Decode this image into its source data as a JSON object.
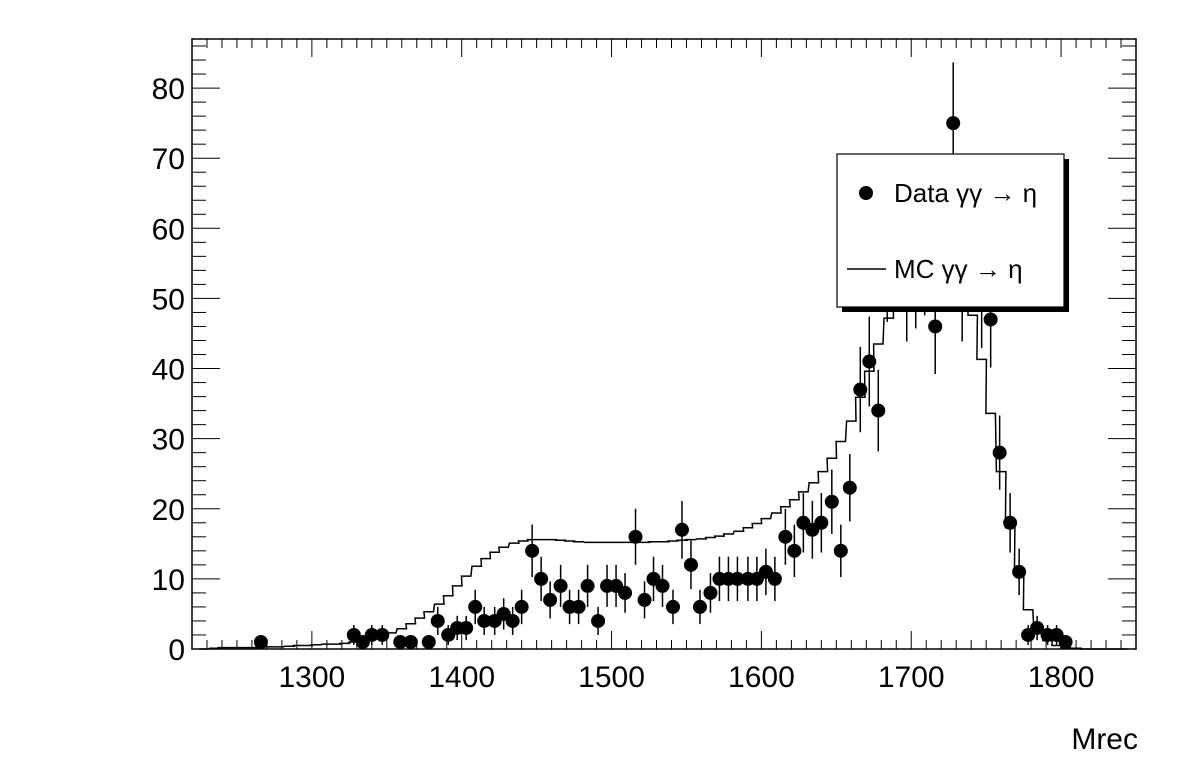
{
  "chart_data": {
    "type": "scatter",
    "title": "",
    "xlabel": "Mrec",
    "ylabel": "",
    "xlim": [
      1220,
      1850
    ],
    "ylim": [
      0,
      87
    ],
    "x_ticks": [
      1300,
      1400,
      1500,
      1600,
      1700,
      1800
    ],
    "x_tick_labels": [
      "1300",
      "1400",
      "1500",
      "1600",
      "1700",
      "1800"
    ],
    "y_ticks": [
      0,
      10,
      20,
      30,
      40,
      50,
      60,
      70,
      80
    ],
    "y_tick_labels": [
      "0",
      "10",
      "20",
      "30",
      "40",
      "50",
      "60",
      "70",
      "80"
    ],
    "grid": false,
    "legend_position": "top-right",
    "legend": [
      {
        "label": "Data γγ → η",
        "style": "marker"
      },
      {
        "label": "MC γγ → η",
        "style": "line"
      }
    ],
    "series": [
      {
        "name": "Data γγ → η",
        "kind": "points-with-errors",
        "x": [
          1266,
          1328,
          1334,
          1340,
          1347,
          1359,
          1366,
          1378,
          1384,
          1391,
          1397,
          1403,
          1409,
          1415,
          1422,
          1428,
          1434,
          1440,
          1447,
          1453,
          1459,
          1466,
          1472,
          1478,
          1484,
          1491,
          1497,
          1503,
          1509,
          1516,
          1522,
          1528,
          1534,
          1541,
          1547,
          1553,
          1559,
          1566,
          1572,
          1578,
          1584,
          1591,
          1597,
          1603,
          1609,
          1616,
          1622,
          1628,
          1634,
          1640,
          1647,
          1653,
          1659,
          1666,
          1672,
          1678,
          1684,
          1691,
          1697,
          1703,
          1709,
          1716,
          1722,
          1728,
          1734,
          1741,
          1747,
          1753,
          1759,
          1766,
          1772,
          1778,
          1784,
          1791,
          1797,
          1803
        ],
        "y": [
          1,
          2,
          1,
          2,
          2,
          1,
          1,
          1,
          4,
          2,
          3,
          3,
          6,
          4,
          4,
          5,
          4,
          6,
          14,
          10,
          7,
          9,
          6,
          6,
          9,
          4,
          9,
          9,
          8,
          16,
          7,
          10,
          9,
          6,
          17,
          12,
          6,
          8,
          10,
          10,
          10,
          10,
          10,
          11,
          10,
          16,
          14,
          18,
          17,
          18,
          21,
          14,
          23,
          37,
          41,
          34,
          54,
          56,
          51,
          53,
          55,
          46,
          60,
          75,
          51,
          61,
          50,
          47,
          28,
          18,
          11,
          2,
          3,
          2,
          2,
          1
        ]
      },
      {
        "name": "MC γγ → η",
        "kind": "step-histogram",
        "x": [
          1228,
          1235,
          1241,
          1247,
          1253,
          1260,
          1266,
          1272,
          1278,
          1285,
          1291,
          1297,
          1303,
          1310,
          1316,
          1322,
          1328,
          1335,
          1341,
          1347,
          1353,
          1360,
          1366,
          1372,
          1378,
          1385,
          1391,
          1397,
          1403,
          1410,
          1416,
          1422,
          1428,
          1435,
          1441,
          1447,
          1453,
          1460,
          1466,
          1472,
          1478,
          1485,
          1491,
          1497,
          1503,
          1510,
          1516,
          1522,
          1528,
          1535,
          1541,
          1547,
          1553,
          1560,
          1566,
          1572,
          1578,
          1585,
          1591,
          1597,
          1603,
          1610,
          1616,
          1622,
          1628,
          1635,
          1641,
          1647,
          1653,
          1660,
          1666,
          1672,
          1678,
          1685,
          1691,
          1697,
          1703,
          1710,
          1716,
          1722,
          1728,
          1735,
          1741,
          1747,
          1753,
          1760,
          1766,
          1772,
          1778,
          1785,
          1791,
          1797,
          1803,
          1810,
          1816,
          1822,
          1828,
          1835,
          1841
        ],
        "y": [
          0,
          0.1,
          0.2,
          0.2,
          0.2,
          0.2,
          0.3,
          0.3,
          0.3,
          0.4,
          0.5,
          0.5,
          0.6,
          0.7,
          0.7,
          0.8,
          1,
          1.2,
          1.5,
          1.8,
          2.3,
          2.9,
          3.6,
          4.4,
          5.3,
          6.4,
          7.6,
          9,
          10.4,
          11.8,
          12.9,
          13.8,
          14.5,
          15.1,
          15.4,
          15.6,
          15.6,
          15.6,
          15.5,
          15.4,
          15.3,
          15.2,
          15.2,
          15.2,
          15.2,
          15.2,
          15.2,
          15.2,
          15.3,
          15.3,
          15.4,
          15.5,
          15.6,
          15.7,
          15.9,
          16.1,
          16.4,
          16.8,
          17.3,
          17.9,
          18.6,
          19.4,
          20.3,
          21.3,
          22.4,
          23.7,
          25.3,
          27.2,
          29.6,
          32.5,
          35.9,
          39.6,
          43.5,
          47.2,
          50.5,
          53.2,
          55,
          56,
          56.3,
          55.9,
          54.6,
          52.1,
          47.6,
          41.3,
          33.6,
          25.3,
          17.3,
          10.5,
          5.6,
          2.7,
          1.2,
          0.5,
          0.2,
          0.1,
          0,
          0,
          0,
          0,
          0
        ]
      }
    ]
  }
}
